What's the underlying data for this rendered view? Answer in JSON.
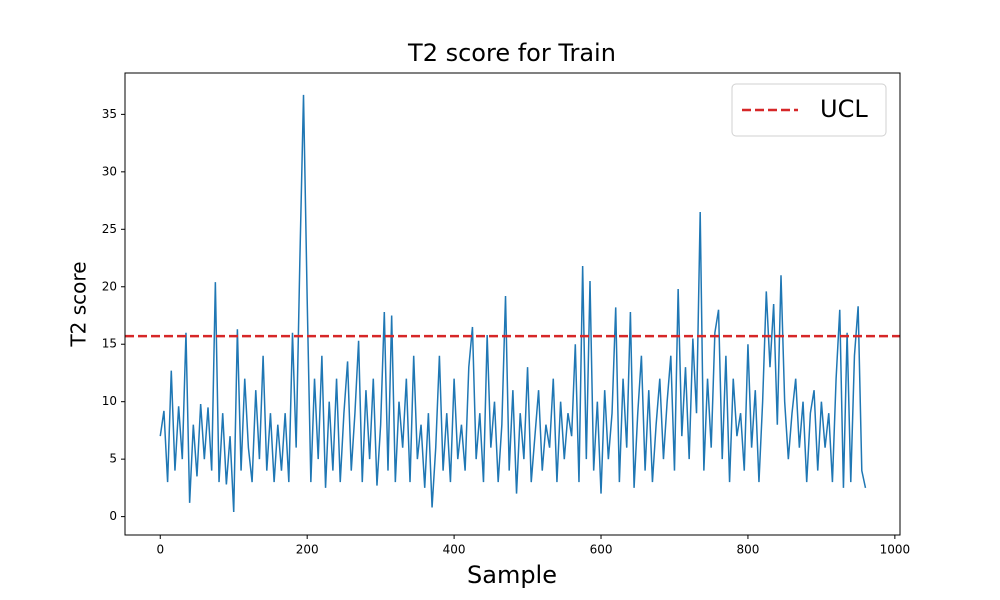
{
  "chart_data": {
    "type": "line",
    "title": "T2 score for Train",
    "xlabel": "Sample",
    "ylabel": "T2 score",
    "x": [
      0,
      5,
      10,
      15,
      20,
      25,
      30,
      35,
      40,
      45,
      50,
      55,
      60,
      65,
      70,
      75,
      80,
      85,
      90,
      95,
      100,
      105,
      110,
      115,
      120,
      125,
      130,
      135,
      140,
      145,
      150,
      155,
      160,
      165,
      170,
      175,
      180,
      185,
      190,
      195,
      200,
      205,
      210,
      215,
      220,
      225,
      230,
      235,
      240,
      245,
      250,
      255,
      260,
      265,
      270,
      275,
      280,
      285,
      290,
      295,
      300,
      305,
      310,
      315,
      320,
      325,
      330,
      335,
      340,
      345,
      350,
      355,
      360,
      365,
      370,
      375,
      380,
      385,
      390,
      395,
      400,
      405,
      410,
      415,
      420,
      425,
      430,
      435,
      440,
      445,
      450,
      455,
      460,
      465,
      470,
      475,
      480,
      485,
      490,
      495,
      500,
      505,
      510,
      515,
      520,
      525,
      530,
      535,
      540,
      545,
      550,
      555,
      560,
      565,
      570,
      575,
      580,
      585,
      590,
      595,
      600,
      605,
      610,
      615,
      620,
      625,
      630,
      635,
      640,
      645,
      650,
      655,
      660,
      665,
      670,
      675,
      680,
      685,
      690,
      695,
      700,
      705,
      710,
      715,
      720,
      725,
      730,
      735,
      740,
      745,
      750,
      755,
      760,
      765,
      770,
      775,
      780,
      785,
      790,
      795,
      800,
      805,
      810,
      815,
      820,
      825,
      830,
      835,
      840,
      845,
      850,
      855,
      860,
      865,
      870,
      875,
      880,
      885,
      890,
      895,
      900,
      905,
      910,
      915,
      920,
      925,
      930,
      935,
      940,
      945,
      950,
      955,
      960
    ],
    "values": [
      7,
      9.2,
      3,
      12.7,
      4,
      9.6,
      5,
      16,
      1.2,
      8,
      3.5,
      9.8,
      5,
      9.5,
      4,
      20.4,
      3,
      9,
      2.8,
      7,
      0.4,
      16.3,
      4,
      12,
      6,
      3,
      11,
      5,
      14,
      4,
      9,
      3,
      8,
      4,
      9,
      3,
      16,
      6,
      22.2,
      36.7,
      18.9,
      3,
      12,
      5,
      14,
      2.5,
      10,
      4,
      12,
      3,
      9,
      13.5,
      4,
      9,
      15.3,
      3,
      11,
      5,
      12,
      2.7,
      8,
      17.8,
      4,
      17.5,
      3,
      10,
      6,
      12,
      3,
      14,
      5,
      8,
      2.5,
      9,
      0.8,
      6,
      14,
      4,
      9,
      3,
      12,
      5,
      8,
      4,
      13,
      16.5,
      5,
      9,
      3,
      15.8,
      6,
      10,
      3,
      8,
      19.2,
      4,
      11,
      2,
      9,
      5,
      13,
      3,
      7,
      11,
      4,
      8,
      6,
      12,
      3,
      10,
      5,
      9,
      7,
      15,
      3,
      21.8,
      5,
      20.5,
      4,
      10,
      2,
      11,
      5,
      9,
      18.2,
      3,
      12,
      6,
      17.8,
      2.5,
      9,
      14,
      4,
      11,
      3,
      8,
      12,
      5,
      10,
      14,
      4,
      19.8,
      7,
      13,
      5,
      15.5,
      9,
      26.5,
      4,
      12,
      6,
      16,
      18,
      5,
      14,
      3,
      12,
      7,
      9,
      4,
      15,
      6,
      11,
      3,
      10,
      19.6,
      13,
      18.5,
      8,
      21,
      10,
      5,
      9,
      12,
      6,
      10,
      3,
      9,
      11,
      4,
      10,
      6,
      9,
      3,
      12,
      18,
      2.5,
      16,
      3,
      14,
      18.3,
      4,
      2.5
    ],
    "color": "#1f77b4",
    "ucl": {
      "name": "UCL",
      "value": 15.7,
      "color": "#d62728"
    },
    "legend": "upper right",
    "xlim": [
      -48,
      1007
    ],
    "ylim": [
      -1.6,
      38.6
    ],
    "xticks": [
      0,
      200,
      400,
      600,
      800,
      1000
    ],
    "yticks": [
      0,
      5,
      10,
      15,
      20,
      25,
      30,
      35
    ]
  }
}
